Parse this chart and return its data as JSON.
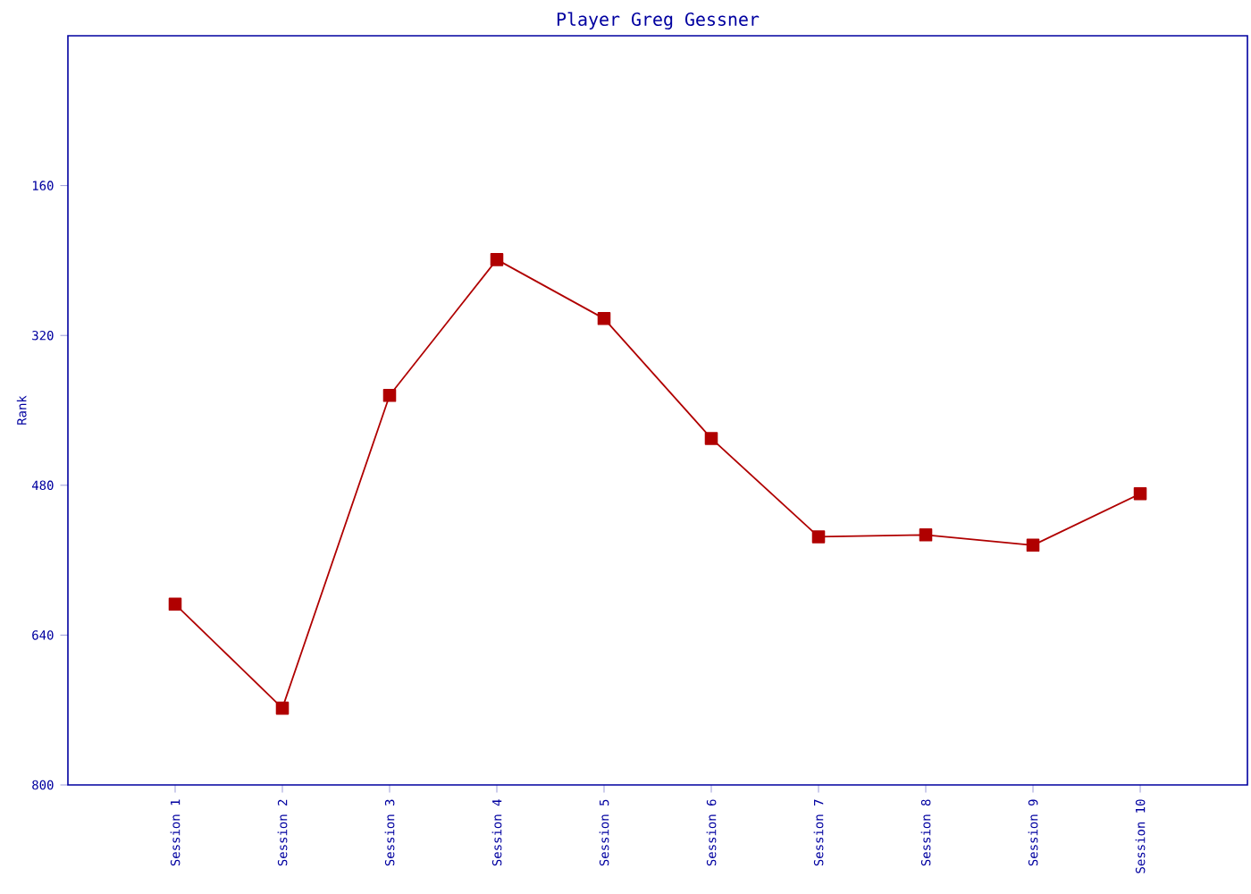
{
  "chart_data": {
    "type": "line",
    "title": "Player Greg Gessner",
    "ylabel": "Rank",
    "categories": [
      "Session 1",
      "Session 2",
      "Session 3",
      "Session 4",
      "Session 5",
      "Session 6",
      "Session 7",
      "Session 8",
      "Session 9",
      "Session 10"
    ],
    "series": [
      {
        "color": "#b00000",
        "values": [
          607,
          718,
          384,
          239,
          302,
          430,
          535,
          533,
          544,
          489
        ]
      }
    ],
    "ylim": [
      800,
      0
    ],
    "yticks": [
      160,
      320,
      480,
      640,
      800
    ],
    "grid": false,
    "marker": "square",
    "line_style": "solid"
  }
}
